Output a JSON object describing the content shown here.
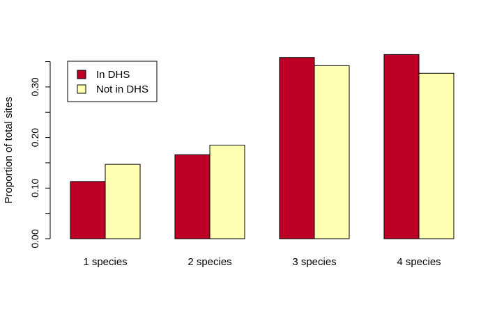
{
  "chart_data": {
    "type": "bar",
    "categories": [
      "1 species",
      "2 species",
      "3 species",
      "4 species"
    ],
    "series": [
      {
        "name": "In DHS",
        "values": [
          0.113,
          0.166,
          0.358,
          0.364
        ],
        "color": "#bf0026"
      },
      {
        "name": "Not in DHS",
        "values": [
          0.147,
          0.185,
          0.342,
          0.327
        ],
        "color": "#ffffb2"
      }
    ],
    "title": "",
    "xlabel": "",
    "ylabel": "Proportion of total sites",
    "ylim": [
      0,
      0.35
    ],
    "yticks_labeled": [
      "0.00",
      "0.10",
      "0.20",
      "0.30"
    ],
    "yticks_minor": [
      0.05,
      0.15,
      0.25,
      0.35
    ],
    "grid": false,
    "legend_position": "top-left"
  }
}
